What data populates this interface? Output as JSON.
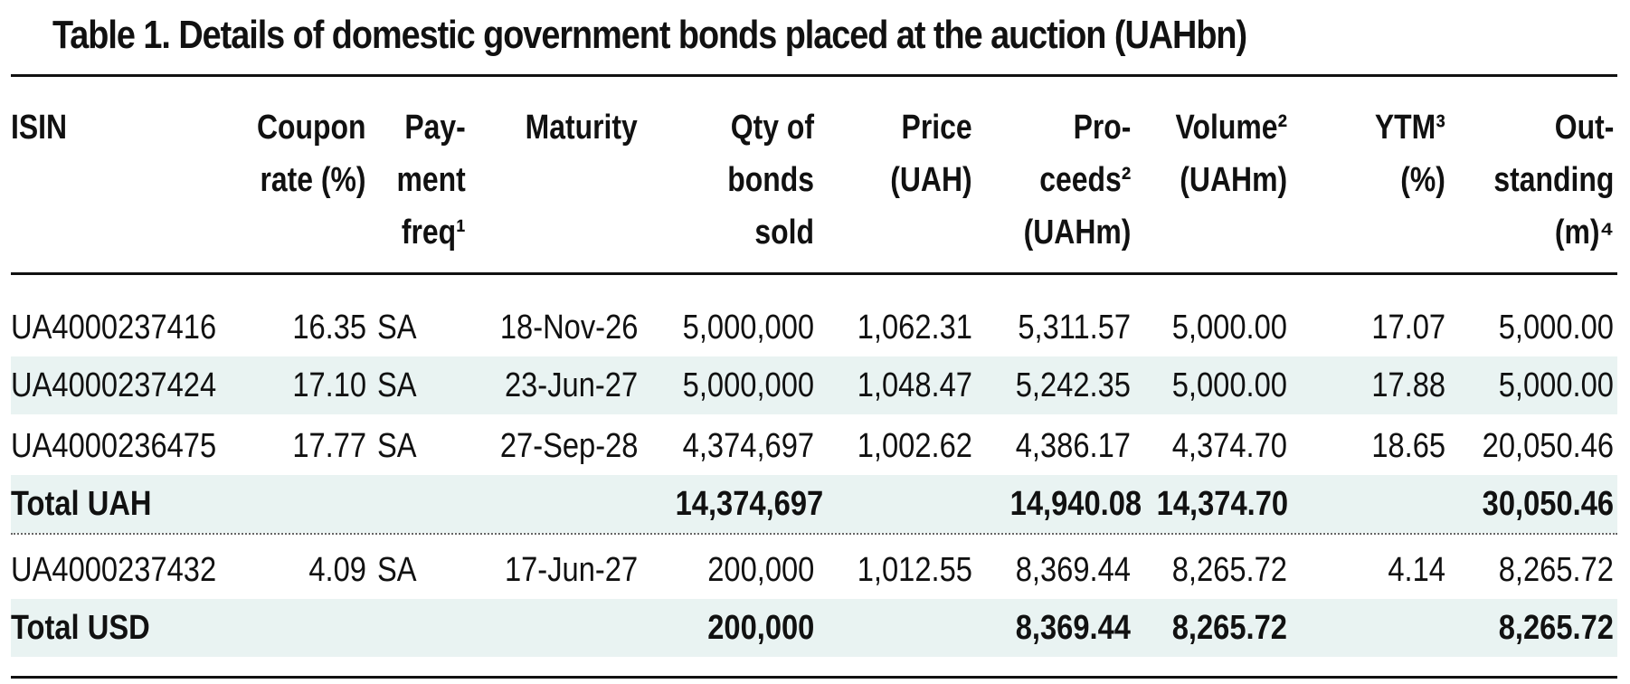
{
  "title": "Table 1. Details of domestic government bonds placed at the auction (UAHbn)",
  "headers": {
    "isin": "ISIN",
    "coupon": "Coupon\nrate (%)",
    "freq": "Pay-\nment\nfreq¹",
    "maturity": "Maturity",
    "qty": "Qty of\nbonds\nsold",
    "price": "Price\n(UAH)",
    "proceeds": "Pro-\nceeds²\n(UAHm)",
    "volume": "Volume²\n(UAHm)",
    "ytm": "YTM³\n(%)",
    "outstanding": "Out-\nstanding\n(m)⁴"
  },
  "rows": [
    {
      "isin": "UA4000237416",
      "coupon": "16.35",
      "freq": "SA",
      "maturity": "18-Nov-26",
      "qty": "5,000,000",
      "price": "1,062.31",
      "proceeds": "5,311.57",
      "volume": "5,000.00",
      "ytm": "17.07",
      "outstanding": "5,000.00"
    },
    {
      "isin": "UA4000237424",
      "coupon": "17.10",
      "freq": "SA",
      "maturity": "23-Jun-27",
      "qty": "5,000,000",
      "price": "1,048.47",
      "proceeds": "5,242.35",
      "volume": "5,000.00",
      "ytm": "17.88",
      "outstanding": "5,000.00"
    },
    {
      "isin": "UA4000236475",
      "coupon": "17.77",
      "freq": "SA",
      "maturity": "27-Sep-28",
      "qty": "4,374,697",
      "price": "1,002.62",
      "proceeds": "4,386.17",
      "volume": "4,374.70",
      "ytm": "18.65",
      "outstanding": "20,050.46"
    },
    {
      "isin": "Total UAH",
      "coupon": "",
      "freq": "",
      "maturity": "",
      "qty": "14,374,697",
      "price": "",
      "proceeds": "14,940.08",
      "volume": "14,374.70",
      "ytm": "",
      "outstanding": "30,050.46"
    },
    {
      "isin": "UA4000237432",
      "coupon": "4.09",
      "freq": "SA",
      "maturity": "17-Jun-27",
      "qty": "200,000",
      "price": "1,012.55",
      "proceeds": "8,369.44",
      "volume": "8,265.72",
      "ytm": "4.14",
      "outstanding": "8,265.72"
    },
    {
      "isin": "Total USD",
      "coupon": "",
      "freq": "",
      "maturity": "",
      "qty": "200,000",
      "price": "",
      "proceeds": "8,369.44",
      "volume": "8,265.72",
      "ytm": "",
      "outstanding": "8,265.72"
    }
  ],
  "colors": {
    "row_shade": "#e9f3f2",
    "rule": "#111111"
  }
}
